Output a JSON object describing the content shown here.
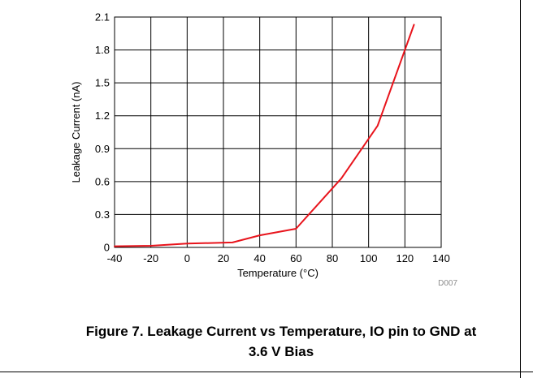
{
  "caption": {
    "line1": "Figure 7. Leakage Current vs Temperature, IO pin to GND at",
    "line2": "3.6 V Bias"
  },
  "colors": {
    "series": "#e8141c",
    "grid": "#000000",
    "code": "#8c8c8c"
  },
  "chart_data": {
    "type": "line",
    "title": "",
    "xlabel": "Temperature (°C)",
    "ylabel": "Leakage Current (nA)",
    "xlim": [
      -40,
      140
    ],
    "ylim": [
      0,
      2.1
    ],
    "xticks": [
      -40,
      -20,
      0,
      20,
      40,
      60,
      80,
      100,
      120,
      140
    ],
    "yticks": [
      0,
      0.3,
      0.6,
      0.9,
      1.2,
      1.5,
      1.8,
      2.1
    ],
    "xtick_labels": [
      "-40",
      "-20",
      "0",
      "20",
      "40",
      "60",
      "80",
      "100",
      "120",
      "140"
    ],
    "ytick_labels": [
      "0",
      "0.3",
      "0.6",
      "0.9",
      "1.2",
      "1.5",
      "1.8",
      "2.1"
    ],
    "grid": true,
    "legend": "none",
    "figure_code": "D007",
    "series": [
      {
        "x": [
          -40,
          -20,
          0,
          25,
          40,
          60,
          85,
          105,
          125
        ],
        "y": [
          0.01,
          0.015,
          0.035,
          0.045,
          0.11,
          0.17,
          0.63,
          1.11,
          2.03
        ]
      }
    ]
  }
}
